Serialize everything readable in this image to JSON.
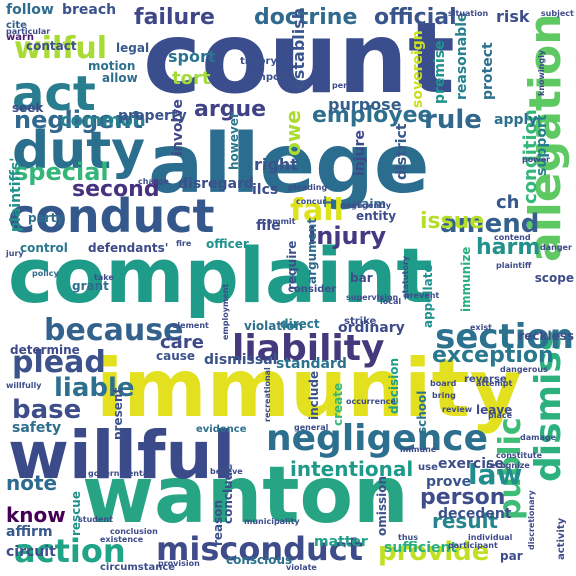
{
  "words": [
    {
      "text": "count",
      "color": "#3a4d8c"
    },
    {
      "text": "allege",
      "color": "#2a6d8e"
    },
    {
      "text": "complaint",
      "color": "#1f9c89"
    },
    {
      "text": "immunity",
      "color": "#e3e11f"
    },
    {
      "text": "wanton",
      "color": "#26a484"
    },
    {
      "text": "willful",
      "color": "#3b4b8a"
    },
    {
      "text": "conduct",
      "color": "#35588c"
    },
    {
      "text": "duty",
      "color": "#2b6f8e"
    },
    {
      "text": "act",
      "color": "#287d8e"
    },
    {
      "text": "negligence",
      "color": "#2c6f8e"
    },
    {
      "text": "liability",
      "color": "#44397d"
    },
    {
      "text": "allegation",
      "color": "#5ec962"
    },
    {
      "text": "dismiss",
      "color": "#2cb17e"
    },
    {
      "text": "public",
      "color": "#3cbc74"
    },
    {
      "text": "misconduct",
      "color": "#3e4c8a"
    },
    {
      "text": "action",
      "color": "#20a386"
    },
    {
      "text": "section",
      "color": "#2c728e"
    },
    {
      "text": "because",
      "color": "#33638d"
    },
    {
      "text": "plead",
      "color": "#3b528b"
    },
    {
      "text": "failure",
      "color": "#3f4788"
    },
    {
      "text": "doctrine",
      "color": "#306a8e"
    },
    {
      "text": "official",
      "color": "#3a548c"
    },
    {
      "text": "wilful",
      "color": "#a8db34"
    },
    {
      "text": "negligent",
      "color": "#31688e"
    },
    {
      "text": "fail",
      "color": "#dde318"
    },
    {
      "text": "injury",
      "color": "#443a83"
    },
    {
      "text": "amend",
      "color": "#35608d"
    },
    {
      "text": "special",
      "color": "#34b679"
    },
    {
      "text": "employee",
      "color": "#2e6f8e"
    },
    {
      "text": "rule",
      "color": "#31688e"
    },
    {
      "text": "law",
      "color": "#218e8d"
    },
    {
      "text": "provide",
      "color": "#c2df23"
    },
    {
      "text": "exception",
      "color": "#2a788e"
    },
    {
      "text": "intentional",
      "color": "#1f9a8a"
    },
    {
      "text": "liable",
      "color": "#2d708e"
    },
    {
      "text": "base",
      "color": "#3d4d8a"
    },
    {
      "text": "person",
      "color": "#3e4c8a"
    },
    {
      "text": "result",
      "color": "#25858e"
    },
    {
      "text": "know",
      "color": "#440154"
    },
    {
      "text": "note",
      "color": "#2f6b8e"
    },
    {
      "text": "harm",
      "color": "#21918c"
    },
    {
      "text": "second",
      "color": "#46327e"
    },
    {
      "text": "argue",
      "color": "#404387"
    },
    {
      "text": "tort",
      "color": "#a2da37"
    },
    {
      "text": "sport",
      "color": "#2b748e"
    },
    {
      "text": "common",
      "color": "#26828e"
    },
    {
      "text": "property",
      "color": "#3b528b"
    },
    {
      "text": "issue",
      "color": "#b5de2b"
    },
    {
      "text": "condition",
      "color": "#35b779"
    },
    {
      "text": "sufficient",
      "color": "#2ab07f"
    },
    {
      "text": "matter",
      "color": "#1fa088"
    },
    {
      "text": "establish",
      "color": "#3a548c"
    },
    {
      "text": "purpose",
      "color": "#355e8d"
    },
    {
      "text": "reasonable",
      "color": "#26828e"
    },
    {
      "text": "protect",
      "color": "#2c718e"
    },
    {
      "text": "sovereign",
      "color": "#c8e020"
    },
    {
      "text": "premise",
      "color": "#20938c"
    },
    {
      "text": "district",
      "color": "#38588c"
    },
    {
      "text": "injure",
      "color": "#3e4989"
    },
    {
      "text": "risk",
      "color": "#3d4e8a"
    },
    {
      "text": "follow",
      "color": "#2f6c8e"
    },
    {
      "text": "breach",
      "color": "#3b528b"
    },
    {
      "text": "cite",
      "color": "#365d8d"
    },
    {
      "text": "warn",
      "color": "#481f70"
    },
    {
      "text": "contact",
      "color": "#3b518b"
    },
    {
      "text": "legal",
      "color": "#38598c"
    },
    {
      "text": "seek",
      "color": "#3e4a89"
    },
    {
      "text": "motion",
      "color": "#2c728e"
    },
    {
      "text": "allow",
      "color": "#2f6c8e"
    },
    {
      "text": "plaintiffs'",
      "color": "#21918c"
    },
    {
      "text": "party",
      "color": "#2d708e"
    },
    {
      "text": "control",
      "color": "#2a778e"
    },
    {
      "text": "defendants'",
      "color": "#3e4a89"
    },
    {
      "text": "officer",
      "color": "#20928c"
    },
    {
      "text": "grant",
      "color": "#2e6d8e"
    },
    {
      "text": "policy",
      "color": "#306a8e"
    },
    {
      "text": "care",
      "color": "#3e4989"
    },
    {
      "text": "cause",
      "color": "#3b528b"
    },
    {
      "text": "dismissal",
      "color": "#3a538b"
    },
    {
      "text": "standard",
      "color": "#2c728e"
    },
    {
      "text": "determine",
      "color": "#3e4a89"
    },
    {
      "text": "safety",
      "color": "#2e6e8e"
    },
    {
      "text": "affirm",
      "color": "#38598c"
    },
    {
      "text": "circuit",
      "color": "#3d4e8a"
    },
    {
      "text": "rescue",
      "color": "#21918c"
    },
    {
      "text": "involve",
      "color": "#3f4889"
    },
    {
      "text": "however",
      "color": "#2a788e"
    },
    {
      "text": "right",
      "color": "#3b528b"
    },
    {
      "text": "disregard",
      "color": "#3c508b"
    },
    {
      "text": "ilcs",
      "color": "#3e4c8a"
    },
    {
      "text": "owe",
      "color": "#aadc32"
    },
    {
      "text": "apply",
      "color": "#2d708e"
    },
    {
      "text": "support",
      "color": "#26818e"
    },
    {
      "text": "ch",
      "color": "#38588c"
    },
    {
      "text": "file",
      "color": "#3e4c8a"
    },
    {
      "text": "entity",
      "color": "#3e4c8a"
    },
    {
      "text": "claim",
      "color": "#31688e"
    },
    {
      "text": "argument",
      "color": "#306a8e"
    },
    {
      "text": "require",
      "color": "#3c508b"
    },
    {
      "text": "violation",
      "color": "#2d708e"
    },
    {
      "text": "direct",
      "color": "#2a788e"
    },
    {
      "text": "ordinary",
      "color": "#3e4c8a"
    },
    {
      "text": "appellate",
      "color": "#21918c"
    },
    {
      "text": "immunize",
      "color": "#2ab07f"
    },
    {
      "text": "decision",
      "color": "#1fa088"
    },
    {
      "text": "school",
      "color": "#2c728e"
    },
    {
      "text": "create",
      "color": "#35b779"
    },
    {
      "text": "include",
      "color": "#3b528b"
    },
    {
      "text": "present",
      "color": "#3c508b"
    },
    {
      "text": "leave",
      "color": "#3e4c8a"
    },
    {
      "text": "exercise",
      "color": "#3d4e8a"
    },
    {
      "text": "prove",
      "color": "#3a548c"
    },
    {
      "text": "decedent",
      "color": "#3c508b"
    },
    {
      "text": "conscious",
      "color": "#2d708e"
    },
    {
      "text": "conclude",
      "color": "#3c508b"
    },
    {
      "text": "reason",
      "color": "#3c508b"
    },
    {
      "text": "omission",
      "color": "#3c508b"
    },
    {
      "text": "reckless",
      "color": "#3e4c8a"
    },
    {
      "text": "scope",
      "color": "#3e4c8a"
    },
    {
      "text": "theory",
      "color": "#3b528b"
    },
    {
      "text": "impose",
      "color": "#3b528b"
    },
    {
      "text": "concur",
      "color": "#3b528b"
    },
    {
      "text": "local",
      "color": "#3e4c8a"
    },
    {
      "text": "bar",
      "color": "#3e4c8a"
    },
    {
      "text": "par",
      "color": "#3e4c8a"
    },
    {
      "text": "evidence",
      "color": "#2d708e"
    },
    {
      "text": "attempt",
      "color": "#3e4c8a"
    },
    {
      "text": "reverse",
      "color": "#3e4c8a"
    },
    {
      "text": "review",
      "color": "#3e4c8a"
    },
    {
      "text": "dangerous",
      "color": "#3e4c8a"
    },
    {
      "text": "damage",
      "color": "#3e4c8a"
    },
    {
      "text": "activity",
      "color": "#3e4c8a"
    },
    {
      "text": "exist",
      "color": "#3e4c8a"
    },
    {
      "text": "place",
      "color": "#3e4c8a"
    },
    {
      "text": "participant",
      "color": "#3e4c8a"
    },
    {
      "text": "individual",
      "color": "#3e4c8a"
    },
    {
      "text": "recreational",
      "color": "#3e4c8a"
    },
    {
      "text": "statutory",
      "color": "#3e4c8a"
    },
    {
      "text": "prevent",
      "color": "#3e4c8a"
    },
    {
      "text": "supervision",
      "color": "#3e4c8a"
    },
    {
      "text": "strike",
      "color": "#3e4c8a"
    },
    {
      "text": "employment",
      "color": "#3e4c8a"
    },
    {
      "text": "governmental",
      "color": "#3e4c8a"
    },
    {
      "text": "circumstance",
      "color": "#3e4c8a"
    },
    {
      "text": "existence",
      "color": "#3e4c8a"
    },
    {
      "text": "willfully",
      "color": "#3e4c8a"
    },
    {
      "text": "violate",
      "color": "#3e4c8a"
    },
    {
      "text": "provision",
      "color": "#3e4c8a"
    },
    {
      "text": "plaintiff",
      "color": "#3e4c8a"
    },
    {
      "text": "situation",
      "color": "#3e4c8a"
    },
    {
      "text": "subject",
      "color": "#3e4c8a"
    },
    {
      "text": "particular",
      "color": "#3e4c8a"
    },
    {
      "text": "permit",
      "color": "#3e4c8a"
    },
    {
      "text": "knowingly",
      "color": "#3e4c8a"
    },
    {
      "text": "power",
      "color": "#3e4c8a"
    },
    {
      "text": "danger",
      "color": "#3e4c8a"
    },
    {
      "text": "charge",
      "color": "#3e4c8a"
    },
    {
      "text": "pleading",
      "color": "#3e4c8a"
    },
    {
      "text": "commit",
      "color": "#3e4c8a"
    },
    {
      "text": "contend",
      "color": "#3e4c8a"
    },
    {
      "text": "take",
      "color": "#3e4c8a"
    },
    {
      "text": "fire",
      "color": "#3e4c8a"
    },
    {
      "text": "jury",
      "color": "#3e4c8a"
    },
    {
      "text": "element",
      "color": "#3e4c8a"
    },
    {
      "text": "use",
      "color": "#3e4c8a"
    },
    {
      "text": "recognize",
      "color": "#3e4c8a"
    },
    {
      "text": "constitute",
      "color": "#3e4c8a"
    },
    {
      "text": "negligently",
      "color": "#3e4c8a"
    },
    {
      "text": "consider",
      "color": "#3e4c8a"
    },
    {
      "text": "general",
      "color": "#3e4c8a"
    },
    {
      "text": "municipality",
      "color": "#3e4c8a"
    },
    {
      "text": "believe",
      "color": "#3e4c8a"
    },
    {
      "text": "discretionary",
      "color": "#3e4c8a"
    },
    {
      "text": "student",
      "color": "#3e4c8a"
    },
    {
      "text": "conclusion",
      "color": "#3e4c8a"
    },
    {
      "text": "thus",
      "color": "#3e4c8a"
    },
    {
      "text": "occurrence",
      "color": "#3e4c8a"
    },
    {
      "text": "board",
      "color": "#3e4c8a"
    },
    {
      "text": "bring",
      "color": "#3e4c8a"
    },
    {
      "text": "immune",
      "color": "#3e4c8a"
    }
  ]
}
